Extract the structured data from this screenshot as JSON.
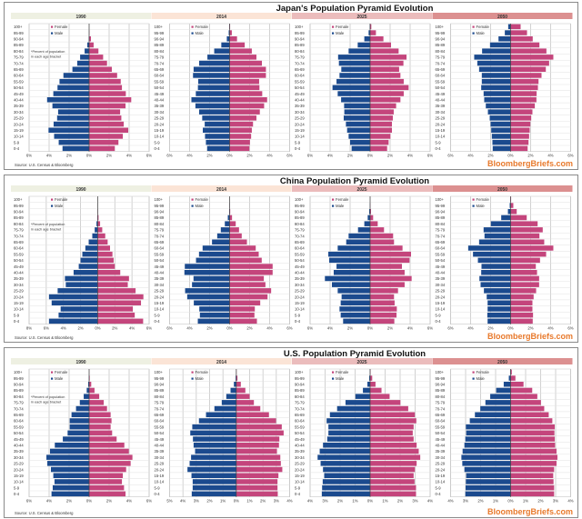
{
  "legend": {
    "female": "Female",
    "male": "Male"
  },
  "note": [
    "*Percent of population",
    "in each age bracket"
  ],
  "source": "Source: U.S. Census & Bloomberg",
  "watermark": "BloombergBriefs.com",
  "colors": {
    "male": "#1b4a8e",
    "female": "#c4457c",
    "watermark": "#e8792b",
    "header": [
      "#eef0e2",
      "#fbe4d6",
      "#ebbcbc",
      "#dc9090"
    ]
  },
  "categories": [
    "0-4",
    "5-9",
    "10-14",
    "15-19",
    "20-24",
    "25-29",
    "30-34",
    "35-39",
    "40-44",
    "45-49",
    "50-54",
    "55-59",
    "60-64",
    "65-69",
    "70-74",
    "75-79",
    "80-84",
    "85-89",
    "90-94",
    "95-99",
    "100+"
  ],
  "chart_data": [
    {
      "type": "bar",
      "title": "Japan's Population Pyramid Evolution",
      "panels": [
        {
          "year": "1990",
          "xlim": [
            -6,
            6
          ],
          "xticks": [
            "6%",
            "4%",
            "2%",
            "0%",
            "2%",
            "4%",
            "6%"
          ],
          "male": [
            2.66,
            3.04,
            3.5,
            4.06,
            3.55,
            3.2,
            3.1,
            3.67,
            4.2,
            3.58,
            3.16,
            2.96,
            2.57,
            1.67,
            1.19,
            0.9,
            0.45,
            0.18,
            0.03,
            0.01,
            0
          ],
          "female": [
            2.57,
            2.93,
            3.37,
            3.91,
            3.46,
            3.22,
            3.1,
            3.64,
            4.21,
            3.67,
            3.28,
            3.16,
            2.8,
            2.27,
            1.79,
            1.4,
            0.93,
            0.45,
            0.18,
            0.03,
            0
          ]
        },
        {
          "year": "2014",
          "xlim": [
            -6,
            6
          ],
          "xticks": [
            "6%",
            "4%",
            "2%",
            "0%",
            "2%",
            "4%",
            "6%"
          ],
          "male": [
            2.25,
            2.37,
            2.46,
            2.68,
            2.49,
            2.74,
            3.05,
            3.42,
            3.82,
            3.38,
            3.17,
            3.14,
            3.66,
            3.6,
            3.05,
            2.22,
            1.54,
            0.83,
            0.28,
            0.09,
            0.02
          ],
          "female": [
            1.97,
            2.03,
            2.15,
            2.22,
            2.34,
            2.68,
            3.02,
            3.45,
            3.75,
            3.26,
            2.98,
            2.95,
            3.63,
            3.63,
            3.23,
            2.68,
            2.22,
            1.51,
            0.74,
            0.22,
            0.05
          ]
        },
        {
          "year": "2025",
          "xlim": [
            -6,
            6
          ],
          "xticks": [
            "6%",
            "4%",
            "2%",
            "0%",
            "2%",
            "4%",
            "6%"
          ],
          "male": [
            1.85,
            2.0,
            2.15,
            2.3,
            2.42,
            2.64,
            2.58,
            2.6,
            2.9,
            3.24,
            3.76,
            3.36,
            3.06,
            2.88,
            3.12,
            3.2,
            2.15,
            1.24,
            0.58,
            0.15,
            0.03
          ],
          "female": [
            1.7,
            1.85,
            2.03,
            2.18,
            2.18,
            2.27,
            2.36,
            2.6,
            3.03,
            3.36,
            3.85,
            3.36,
            3.03,
            2.9,
            3.33,
            3.64,
            2.85,
            2.09,
            1.33,
            0.58,
            0.12
          ]
        },
        {
          "year": "2050",
          "xlim": [
            -6,
            6
          ],
          "xticks": [
            "6%",
            "4%",
            "2%",
            "0%",
            "2%",
            "4%",
            "6%"
          ],
          "male": [
            1.79,
            1.82,
            1.88,
            1.94,
            2.0,
            2.09,
            2.27,
            2.48,
            2.64,
            2.7,
            2.94,
            2.88,
            2.88,
            3.15,
            3.33,
            3.64,
            2.85,
            2.06,
            1.21,
            0.58,
            0.24
          ],
          "female": [
            1.7,
            1.79,
            1.85,
            1.91,
            1.97,
            2.06,
            2.18,
            2.42,
            2.58,
            2.6,
            2.73,
            2.79,
            3.09,
            3.52,
            3.85,
            4.27,
            3.58,
            2.88,
            2.21,
            1.64,
            1.0
          ]
        }
      ]
    },
    {
      "type": "bar",
      "title": "China Population Pyramid Evolution",
      "panels": [
        {
          "year": "1990",
          "xlim": [
            -8,
            6
          ],
          "xticks": [
            "8%",
            "6%",
            "4%",
            "2%",
            "0%",
            "2%",
            "4%",
            "6%"
          ],
          "male": [
            5.68,
            4.56,
            4.32,
            5.37,
            5.68,
            4.67,
            3.72,
            3.82,
            2.81,
            2.21,
            2.0,
            1.79,
            1.44,
            1.05,
            0.63,
            0.35,
            0.14,
            0.05,
            0.01,
            0,
            0
          ],
          "female": [
            5.3,
            4.32,
            4.1,
            5.05,
            5.33,
            4.42,
            3.51,
            3.65,
            2.63,
            2.0,
            1.86,
            1.72,
            1.44,
            1.16,
            0.88,
            0.53,
            0.28,
            0.1,
            0.02,
            0,
            0
          ]
        },
        {
          "year": "2014",
          "xlim": [
            -6,
            6
          ],
          "xticks": [
            "6%",
            "4%",
            "2%",
            "0%",
            "2%",
            "4%",
            "6%"
          ],
          "male": [
            3.18,
            2.97,
            3.03,
            3.58,
            4.24,
            4.45,
            3.76,
            3.61,
            4.52,
            4.48,
            3.36,
            3.06,
            2.7,
            1.76,
            1.24,
            0.88,
            0.48,
            0.18,
            0.04,
            0.01,
            0
          ],
          "female": [
            2.73,
            2.48,
            2.52,
            3.06,
            3.79,
            4.15,
            3.58,
            3.42,
            4.3,
            4.3,
            3.21,
            2.91,
            2.61,
            1.73,
            1.21,
            0.94,
            0.61,
            0.24,
            0.06,
            0.01,
            0
          ]
        },
        {
          "year": "2025",
          "xlim": [
            -6,
            6
          ],
          "xticks": [
            "6%",
            "4%",
            "2%",
            "0%",
            "2%",
            "4%",
            "6%"
          ],
          "male": [
            2.7,
            2.94,
            3.06,
            2.94,
            2.85,
            3.24,
            3.82,
            4.52,
            3.64,
            3.36,
            4.09,
            4.18,
            3.24,
            2.39,
            2.15,
            1.21,
            0.58,
            0.24,
            0.09,
            0.02,
            0
          ],
          "female": [
            2.42,
            2.64,
            2.67,
            2.45,
            2.39,
            2.79,
            3.45,
            4.15,
            3.45,
            3.18,
            3.94,
            4.09,
            3.24,
            2.39,
            2.3,
            1.39,
            0.76,
            0.3,
            0.09,
            0.02,
            0
          ]
        },
        {
          "year": "2050",
          "xlim": [
            -6,
            6
          ],
          "xticks": [
            "6%",
            "4%",
            "2%",
            "0%",
            "2%",
            "4%",
            "6%"
          ],
          "male": [
            2.3,
            2.33,
            2.3,
            2.3,
            2.39,
            2.67,
            3.0,
            3.12,
            2.94,
            2.91,
            3.27,
            3.76,
            4.24,
            3.15,
            2.61,
            2.7,
            1.97,
            0.94,
            0.27,
            0.09,
            0.01
          ],
          "female": [
            2.21,
            2.24,
            2.18,
            2.18,
            2.3,
            2.55,
            2.85,
            2.85,
            2.64,
            2.52,
            2.94,
            3.55,
            4.27,
            3.36,
            2.88,
            3.21,
            2.7,
            1.61,
            0.61,
            0.27,
            0.05
          ]
        }
      ]
    },
    {
      "type": "bar",
      "title": "U.S. Population Pyramid Evolution",
      "panels": [
        {
          "year": "1990",
          "xlim": [
            -6,
            6
          ],
          "xticks": [
            "6%",
            "4%",
            "2%",
            "0%",
            "2%",
            "4%",
            "6%"
          ],
          "male": [
            3.76,
            3.64,
            3.46,
            3.58,
            3.82,
            4.18,
            4.27,
            3.91,
            3.43,
            2.63,
            2.15,
            1.94,
            1.94,
            1.76,
            1.31,
            0.93,
            0.54,
            0.24,
            0.09,
            0.02,
            0
          ],
          "female": [
            3.64,
            3.49,
            3.28,
            3.37,
            3.7,
            4.15,
            4.33,
            3.97,
            3.52,
            2.75,
            2.3,
            2.15,
            2.24,
            2.15,
            1.79,
            1.46,
            1.01,
            0.54,
            0.21,
            0.06,
            0.01
          ]
        },
        {
          "year": "2014",
          "xlim": [
            -5,
            4
          ],
          "xticks": [
            "5%",
            "4%",
            "3%",
            "2%",
            "1%",
            "0%",
            "1%",
            "2%",
            "3%",
            "4%"
          ],
          "male": [
            3.34,
            3.27,
            3.27,
            3.36,
            3.66,
            3.5,
            3.39,
            3.09,
            3.2,
            3.25,
            3.45,
            3.3,
            2.8,
            2.27,
            1.64,
            1.09,
            0.75,
            0.43,
            0.18,
            0.05,
            0.01
          ],
          "female": [
            3.11,
            3.09,
            3.09,
            3.16,
            3.45,
            3.34,
            3.3,
            3.05,
            3.2,
            3.23,
            3.55,
            3.41,
            2.98,
            2.45,
            1.8,
            1.32,
            1.0,
            0.68,
            0.34,
            0.09,
            0.02
          ]
        },
        {
          "year": "2025",
          "xlim": [
            -4,
            4
          ],
          "xticks": [
            "4%",
            "3%",
            "2%",
            "1%",
            "0%",
            "1%",
            "2%",
            "3%",
            "4%"
          ],
          "male": [
            3.22,
            3.2,
            3.16,
            3.06,
            3.14,
            3.3,
            3.5,
            3.36,
            3.14,
            2.86,
            2.78,
            2.78,
            2.9,
            2.68,
            2.2,
            1.64,
            0.98,
            0.48,
            0.18,
            0.06,
            0.01
          ],
          "female": [
            3.06,
            3.06,
            2.96,
            2.9,
            2.98,
            3.1,
            3.34,
            3.24,
            3.1,
            2.9,
            2.84,
            2.9,
            3.08,
            2.98,
            2.54,
            2.02,
            1.3,
            0.76,
            0.36,
            0.14,
            0.03
          ]
        },
        {
          "year": "2050",
          "xlim": [
            -4,
            4
          ],
          "xticks": [
            "4%",
            "3%",
            "2%",
            "1%",
            "0%",
            "1%",
            "2%",
            "3%",
            "4%"
          ],
          "male": [
            3.02,
            3.0,
            2.98,
            2.96,
            3.08,
            3.22,
            3.28,
            3.2,
            3.08,
            3.02,
            2.96,
            2.98,
            2.72,
            2.38,
            2.02,
            1.68,
            1.36,
            0.96,
            0.46,
            0.12,
            0.02
          ],
          "female": [
            2.9,
            2.9,
            2.86,
            2.84,
            2.9,
            3.06,
            3.12,
            3.06,
            2.96,
            2.94,
            2.92,
            2.94,
            2.78,
            2.54,
            2.24,
            2.02,
            1.78,
            1.44,
            0.86,
            0.32,
            0.08
          ]
        }
      ]
    }
  ]
}
